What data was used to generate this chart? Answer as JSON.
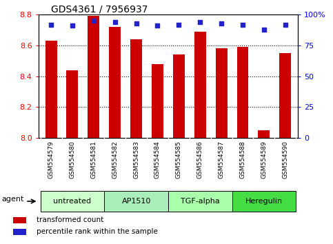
{
  "title": "GDS4361 / 7956937",
  "samples": [
    "GSM554579",
    "GSM554580",
    "GSM554581",
    "GSM554582",
    "GSM554583",
    "GSM554584",
    "GSM554585",
    "GSM554586",
    "GSM554587",
    "GSM554588",
    "GSM554589",
    "GSM554590"
  ],
  "red_values": [
    8.63,
    8.44,
    8.79,
    8.72,
    8.64,
    8.48,
    8.54,
    8.69,
    8.58,
    8.59,
    8.05,
    8.55
  ],
  "blue_values": [
    92,
    91,
    95,
    94,
    93,
    91,
    92,
    94,
    93,
    92,
    88,
    92
  ],
  "ylim": [
    8.0,
    8.8
  ],
  "y2lim": [
    0,
    100
  ],
  "yticks": [
    8.0,
    8.2,
    8.4,
    8.6,
    8.8
  ],
  "y2ticks": [
    0,
    25,
    50,
    75,
    100
  ],
  "y2ticklabels": [
    "0",
    "25",
    "50",
    "75",
    "100%"
  ],
  "bar_color": "#cc0000",
  "dot_color": "#2222cc",
  "groups": [
    {
      "label": "untreated",
      "start": 0,
      "end": 3,
      "color": "#ccffcc"
    },
    {
      "label": "AP1510",
      "start": 3,
      "end": 6,
      "color": "#aaeebb"
    },
    {
      "label": "TGF-alpha",
      "start": 6,
      "end": 9,
      "color": "#aaffaa"
    },
    {
      "label": "Heregulin",
      "start": 9,
      "end": 12,
      "color": "#44dd44"
    }
  ],
  "agent_label": "agent",
  "legend_red": "transformed count",
  "legend_blue": "percentile rank within the sample",
  "bar_width": 0.55,
  "tick_label_area_color": "#c8c8c8"
}
